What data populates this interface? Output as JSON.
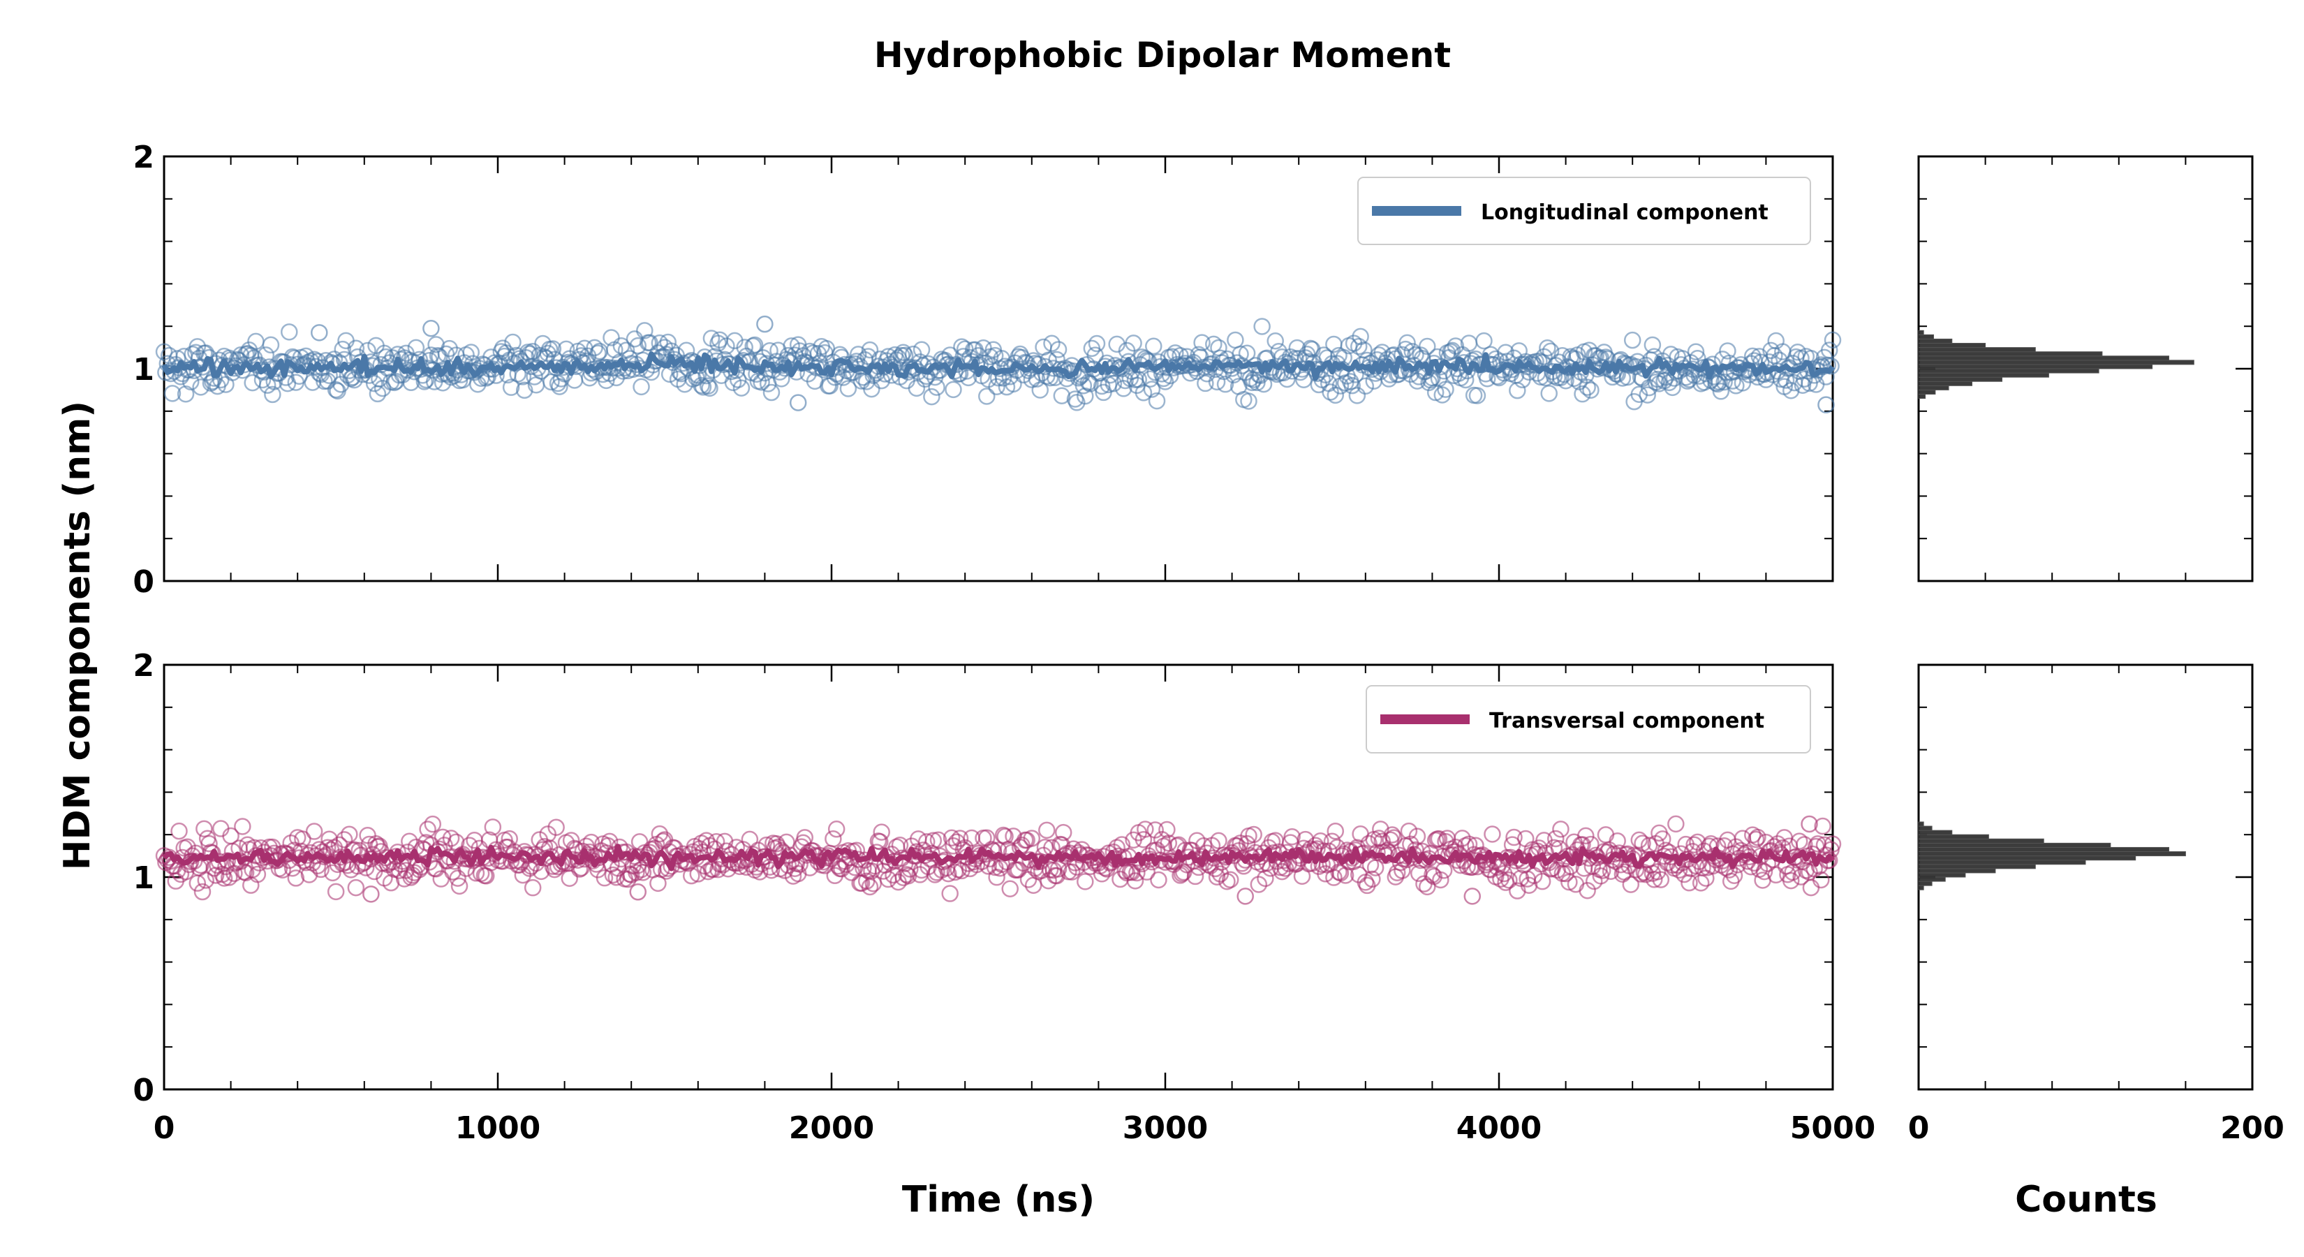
{
  "figure": {
    "title": "Hydrophobic Dipolar Moment",
    "ylabel": "HDM components (nm)",
    "xlabel": "Time (ns)",
    "hist_xlabel": "Counts"
  },
  "colors": {
    "longitudinal": "#4a78a8",
    "transversal": "#a8306e",
    "histogram": "#1a1a1a"
  },
  "chart_data": [
    {
      "type": "scatter",
      "name": "longitudinal-timeseries",
      "xlabel": "Time (ns)",
      "ylabel": "HDM components (nm)",
      "xlim": [
        0,
        5000
      ],
      "ylim": [
        0,
        2
      ],
      "xticks": [
        0,
        1000,
        2000,
        3000,
        4000,
        5000
      ],
      "yticks": [
        0,
        1,
        2
      ],
      "grid": false,
      "legend": "top-right",
      "series": [
        {
          "name": "Longitudinal component",
          "x": [
            0,
            500,
            1000,
            1500,
            2000,
            2500,
            3000,
            3500,
            4000,
            4500,
            5000
          ],
          "y": [
            1.0,
            1.01,
            1.0,
            1.03,
            1.01,
            1.0,
            1.01,
            1.01,
            1.01,
            1.0,
            1.0
          ],
          "spread": 0.06,
          "outliers": [
            [
              800,
              1.19
            ],
            [
              1800,
              1.21
            ],
            [
              465,
              1.17
            ],
            [
              1900,
              0.84
            ],
            [
              4980,
              0.83
            ]
          ]
        }
      ]
    },
    {
      "type": "scatter",
      "name": "transversal-timeseries",
      "xlabel": "Time (ns)",
      "ylabel": "HDM components (nm)",
      "xlim": [
        0,
        5000
      ],
      "ylim": [
        0,
        2
      ],
      "xticks": [
        0,
        1000,
        2000,
        3000,
        4000,
        5000
      ],
      "yticks": [
        0,
        1,
        2
      ],
      "grid": false,
      "legend": "top-right",
      "series": [
        {
          "name": "Transversal component",
          "x": [
            0,
            500,
            1000,
            1500,
            2000,
            2500,
            3000,
            3500,
            4000,
            4500,
            5000
          ],
          "y": [
            1.09,
            1.09,
            1.1,
            1.09,
            1.1,
            1.09,
            1.09,
            1.1,
            1.09,
            1.09,
            1.09
          ],
          "spread": 0.06,
          "outliers": [
            [
              4930,
              1.25
            ],
            [
              620,
              0.92
            ],
            [
              3240,
              0.91
            ],
            [
              3920,
              0.91
            ],
            [
              1420,
              0.93
            ]
          ]
        }
      ]
    },
    {
      "type": "bar",
      "orientation": "horizontal",
      "name": "longitudinal-histogram",
      "xlabel": "Counts",
      "xlim": [
        0,
        200
      ],
      "xticks": [
        0,
        200
      ],
      "ylim": [
        0,
        2
      ],
      "bins": [
        0.86,
        0.88,
        0.9,
        0.92,
        0.94,
        0.96,
        0.98,
        1.0,
        1.02,
        1.04,
        1.06,
        1.08,
        1.1,
        1.12,
        1.14,
        1.16
      ],
      "counts": [
        4,
        10,
        18,
        32,
        50,
        78,
        108,
        140,
        165,
        150,
        110,
        70,
        40,
        20,
        9,
        3
      ]
    },
    {
      "type": "bar",
      "orientation": "horizontal",
      "name": "transversal-histogram",
      "xlabel": "Counts",
      "xlim": [
        0,
        200
      ],
      "xticks": [
        0,
        200
      ],
      "ylim": [
        0,
        2
      ],
      "bins": [
        0.94,
        0.96,
        0.98,
        1.0,
        1.02,
        1.04,
        1.06,
        1.08,
        1.1,
        1.12,
        1.14,
        1.16,
        1.18,
        1.2,
        1.22,
        1.24
      ],
      "counts": [
        3,
        8,
        16,
        28,
        46,
        70,
        100,
        130,
        160,
        150,
        115,
        75,
        42,
        20,
        8,
        3
      ]
    }
  ]
}
